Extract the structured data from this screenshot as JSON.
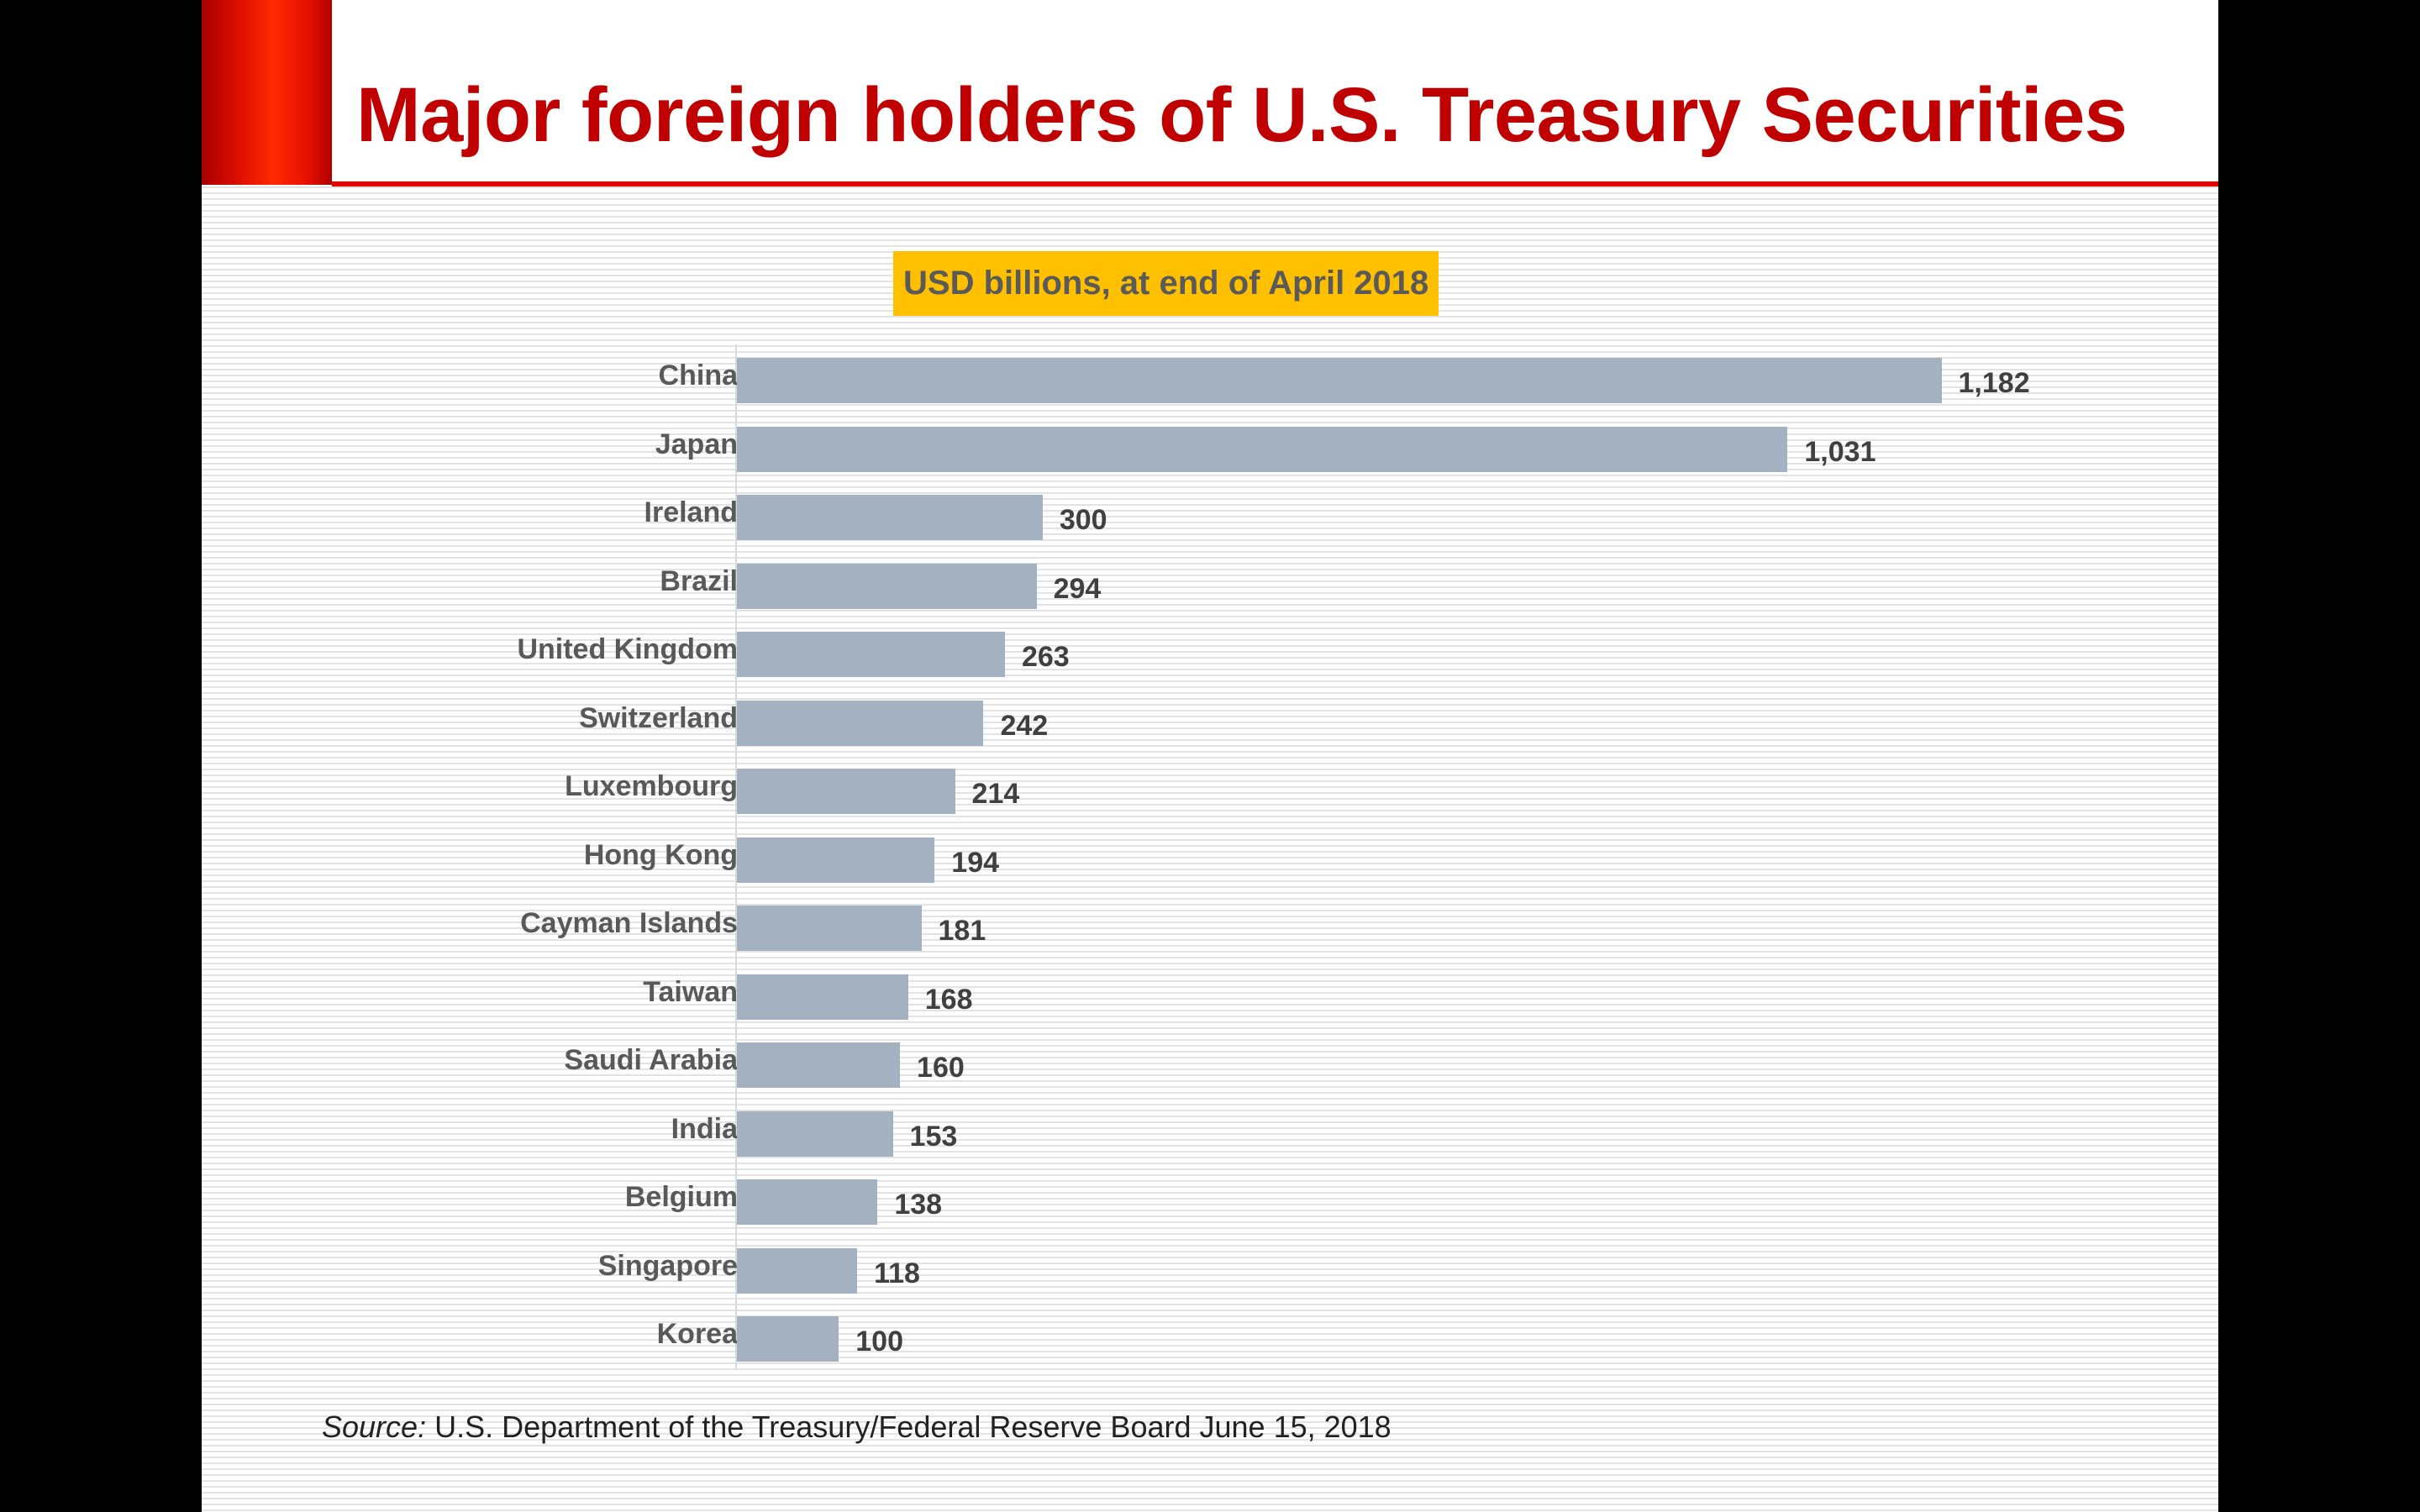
{
  "title": "Major foreign holders of U.S. Treasury Securities",
  "source": {
    "prefix": "Source:",
    "text": "U.S. Department of the Treasury/Federal Reserve Board June 15, 2018"
  },
  "colors": {
    "title": "#c00000",
    "accent": "#ff2a00",
    "rule": "#e00000",
    "subtitle_bg": "#ffc000",
    "bar": "#a3b1c1"
  },
  "chart_data": {
    "type": "bar",
    "orientation": "horizontal",
    "title": "USD billions, at end of April 2018",
    "xlabel": "",
    "ylabel": "",
    "xlim": [
      0,
      1250
    ],
    "grid": false,
    "legend": "none",
    "categories": [
      "China",
      "Japan",
      "Ireland",
      "Brazil",
      "United Kingdom",
      "Switzerland",
      "Luxembourg",
      "Hong Kong",
      "Cayman Islands",
      "Taiwan",
      "Saudi Arabia",
      "India",
      "Belgium",
      "Singapore",
      "Korea"
    ],
    "values": [
      1182,
      1031,
      300,
      294,
      263,
      242,
      214,
      194,
      181,
      168,
      160,
      153,
      138,
      118,
      100
    ],
    "value_labels": [
      "1,182",
      "1,031",
      "300",
      "294",
      "263",
      "242",
      "214",
      "194",
      "181",
      "168",
      "160",
      "153",
      "138",
      "118",
      "100"
    ]
  }
}
